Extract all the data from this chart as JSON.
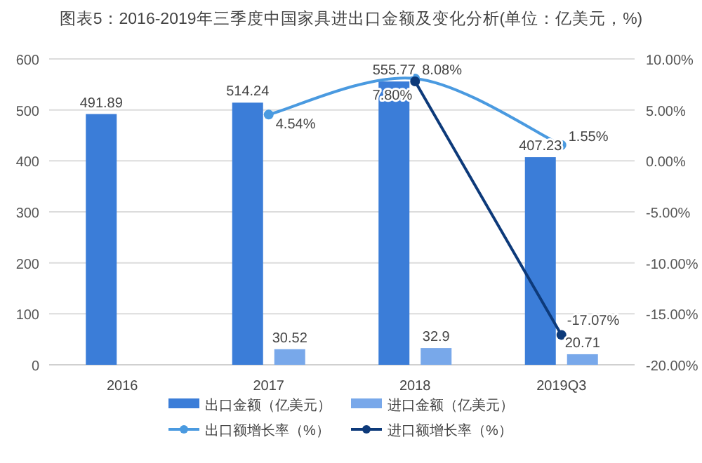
{
  "chart_data": {
    "type": "bar",
    "title": "图表5：2016-2019年三季度中国家具进出口金额及变化分析(单位：亿美元，%)",
    "categories": [
      "2016",
      "2017",
      "2018",
      "2019Q3"
    ],
    "series": [
      {
        "name": "出口金额（亿美元）",
        "color": "#3b7dd8",
        "values": [
          491.89,
          514.24,
          555.77,
          407.23
        ],
        "value_labels": [
          "491.89",
          "514.24",
          "555.77",
          "407.23"
        ]
      },
      {
        "name": "进口金额（亿美元）",
        "color": "#78a8ea",
        "values": [
          null,
          30.52,
          32.9,
          20.71
        ],
        "value_labels": [
          null,
          "30.52",
          "32.9",
          "20.71"
        ]
      },
      {
        "name": "出口额增长率（%）",
        "type": "line",
        "axis": "y2",
        "color": "#4a9ae0",
        "values": [
          null,
          4.54,
          8.08,
          1.55
        ],
        "value_labels": [
          null,
          "4.54%",
          "8.08%",
          "1.55%"
        ]
      },
      {
        "name": "进口额增长率（%）",
        "type": "line",
        "axis": "y2",
        "color": "#0d3a7a",
        "values": [
          null,
          null,
          7.8,
          -17.07
        ],
        "value_labels": [
          null,
          null,
          "7.80%",
          "-17.07%"
        ]
      }
    ],
    "ylim": [
      0,
      600
    ],
    "yticks": [
      0,
      100,
      200,
      300,
      400,
      500,
      600
    ],
    "y2lim": [
      -20,
      10
    ],
    "y2ticks": [
      {
        "value": 10,
        "label": "10.00%"
      },
      {
        "value": 5,
        "label": "5.00%"
      },
      {
        "value": 0,
        "label": "0.00%"
      },
      {
        "value": -5,
        "label": "-5.00%"
      },
      {
        "value": -10,
        "label": "-10.00%"
      },
      {
        "value": -15,
        "label": "-15.00%"
      },
      {
        "value": -20,
        "label": "-20.00%"
      }
    ],
    "grid": "y",
    "legend": "bottom",
    "marker": "circle",
    "line_style": "solid"
  }
}
